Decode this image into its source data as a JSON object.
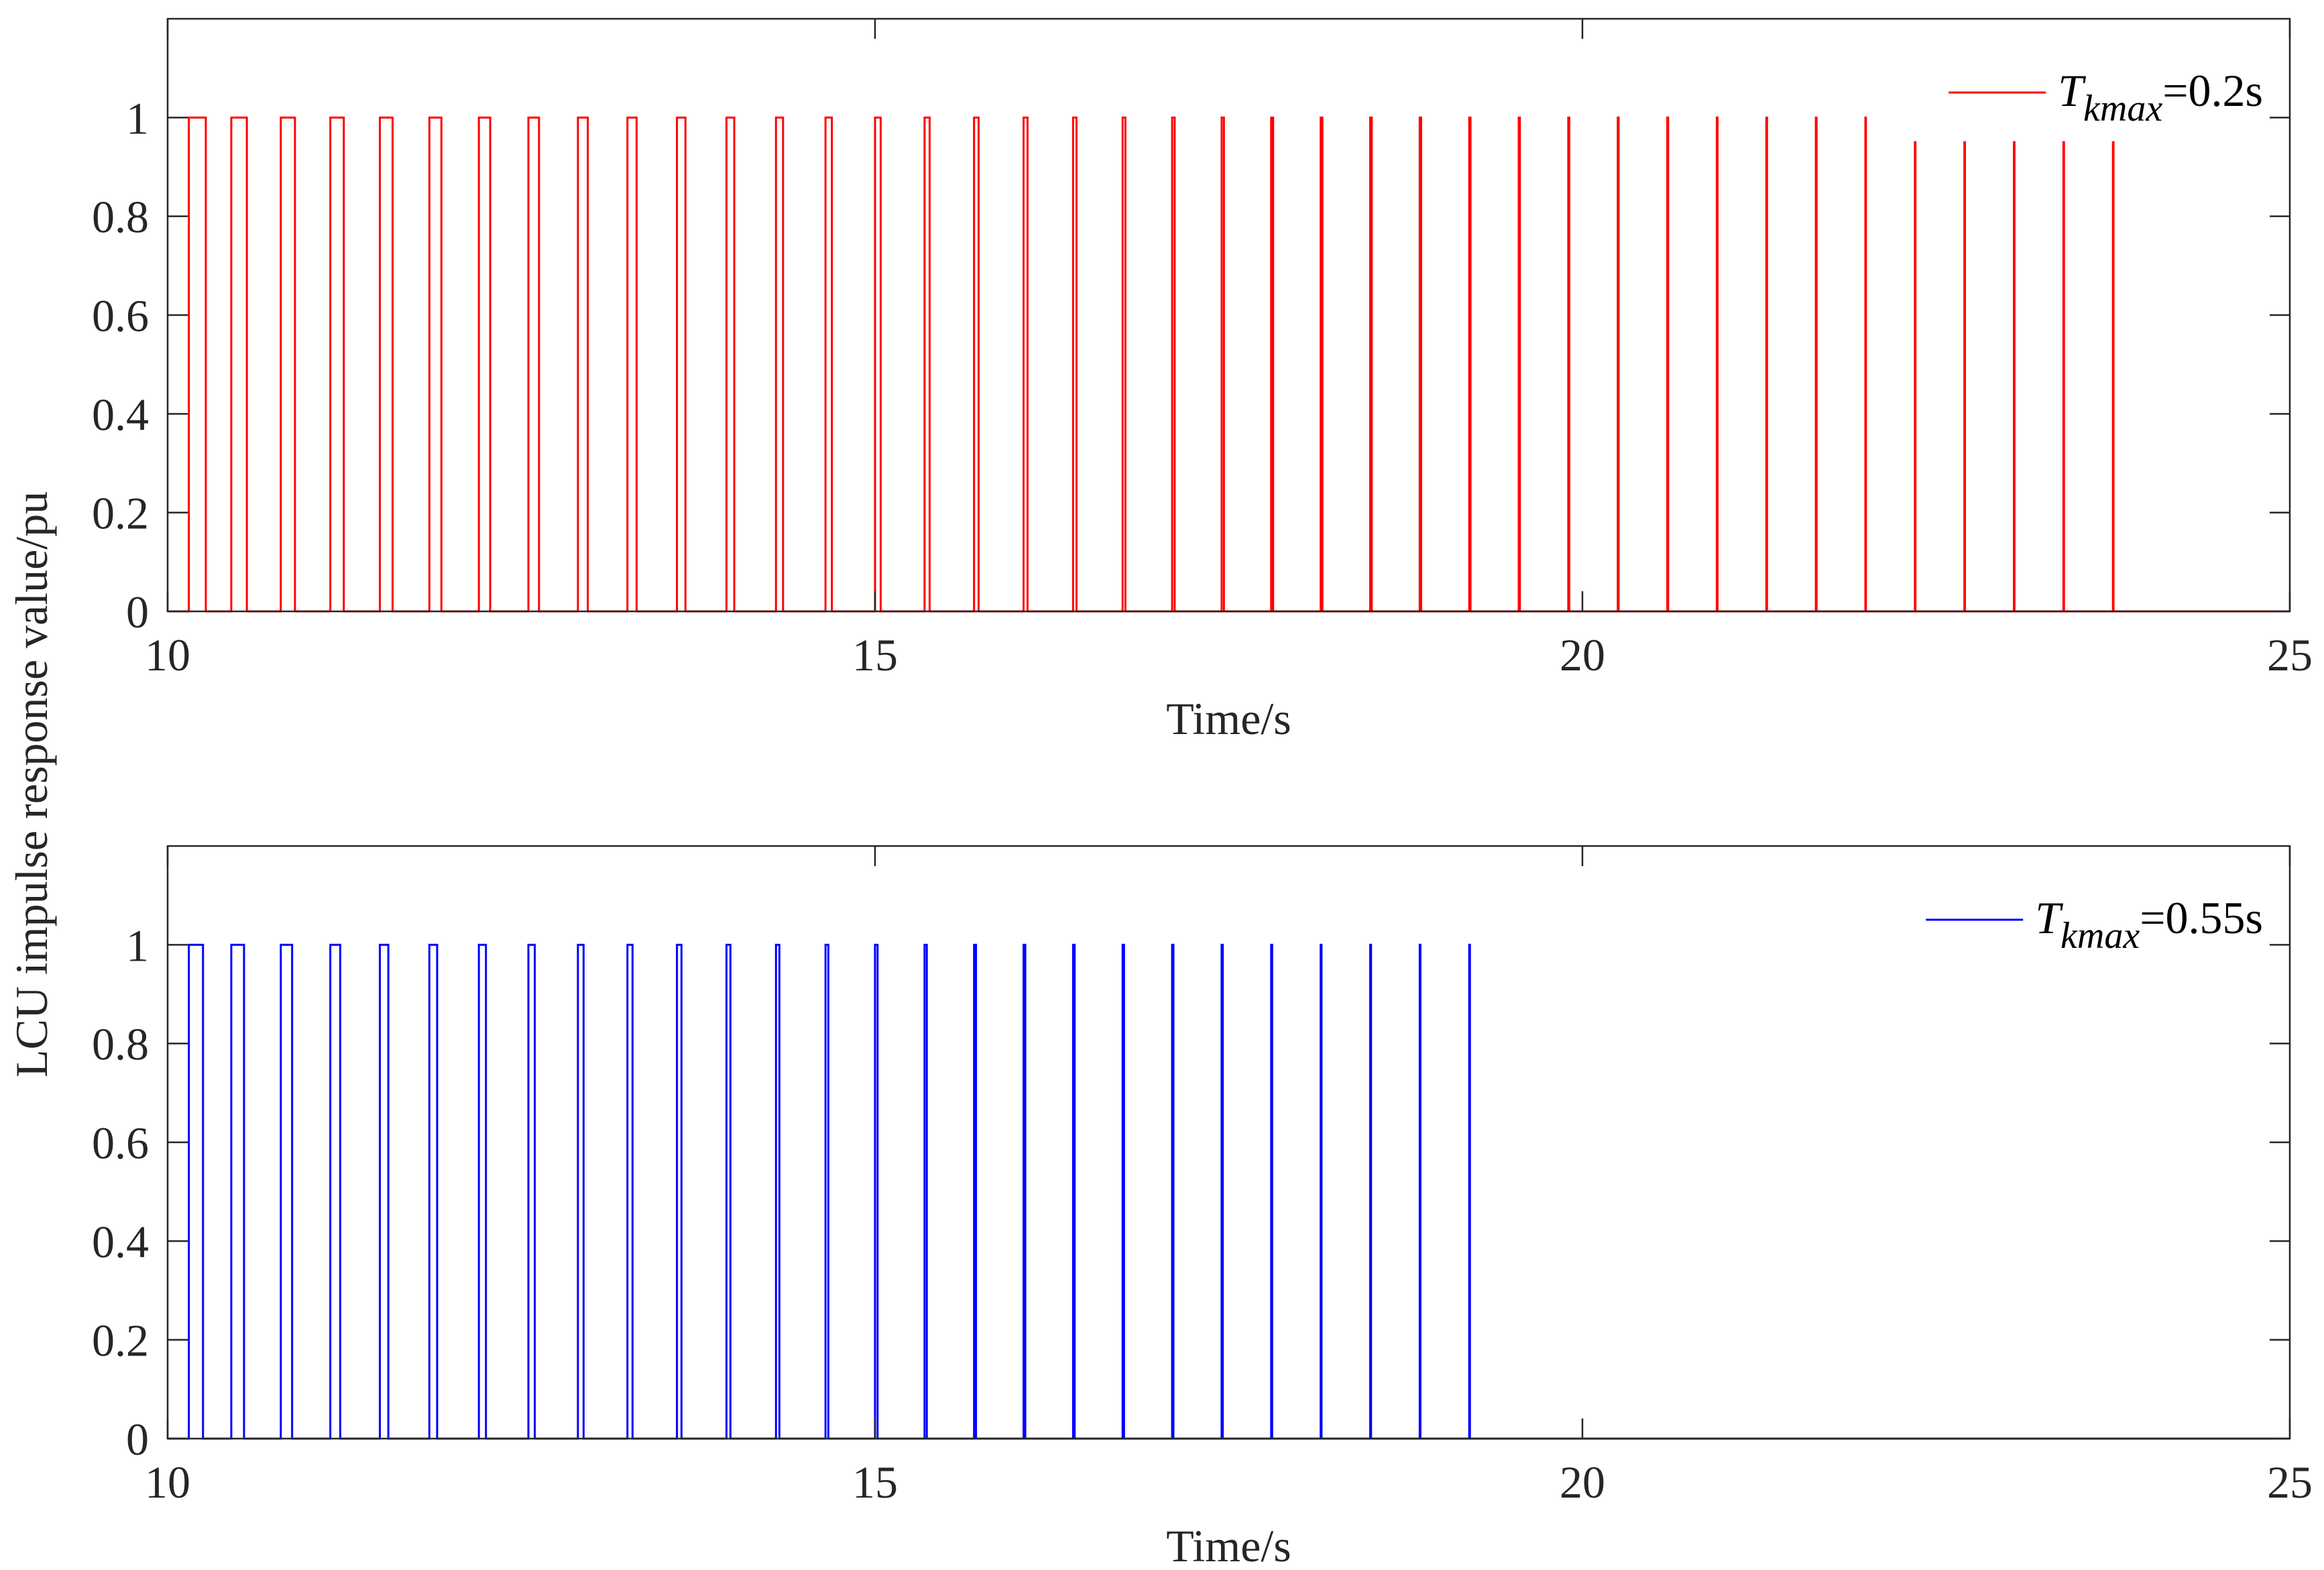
{
  "figure": {
    "shared_ylabel": "LCU impulse response value/pu"
  },
  "chart_data": [
    {
      "type": "line",
      "xlabel": "Time/s",
      "xlim": [
        10,
        25
      ],
      "ylim": [
        0,
        1.2
      ],
      "xticks": [
        10,
        15,
        20,
        25
      ],
      "yticks": [
        0,
        0.2,
        0.4,
        0.6,
        0.8,
        1
      ],
      "ytick_labels": [
        "0",
        "0.2",
        "0.4",
        "0.6",
        "0.8",
        "1"
      ],
      "legend_position": "top-right",
      "grid": false,
      "series": [
        {
          "name": "T_kmax=0.2s",
          "legend": {
            "main": "T",
            "sub": "kmax",
            "rest": "=0.2s"
          },
          "color": "#ff0000",
          "pulses": {
            "starts": [
              10.15,
              10.45,
              10.8,
              11.15,
              11.5,
              11.85,
              12.2,
              12.55,
              12.9,
              13.25,
              13.6,
              13.95,
              14.3,
              14.65,
              15.0,
              15.35,
              15.7,
              16.05,
              16.4,
              16.75,
              17.1,
              17.45,
              17.8,
              18.15,
              18.5,
              18.85,
              19.2,
              19.55,
              19.9,
              20.25,
              20.6,
              20.95,
              21.3,
              21.65,
              22.0,
              22.35,
              22.7,
              23.05,
              23.4,
              23.75
            ],
            "widths": [
              0.12,
              0.11,
              0.1,
              0.095,
              0.09,
              0.085,
              0.08,
              0.075,
              0.07,
              0.065,
              0.06,
              0.055,
              0.05,
              0.045,
              0.04,
              0.036,
              0.032,
              0.028,
              0.024,
              0.02,
              0.018,
              0.016,
              0.014,
              0.012,
              0.011,
              0.01,
              0.009,
              0.008,
              0.007,
              0.006,
              0.006,
              0.005,
              0.005,
              0.005,
              0.004,
              0.004,
              0.004,
              0.004,
              0.004,
              0.004
            ],
            "heights": [
              1,
              1,
              1,
              1,
              1,
              1,
              1,
              1,
              1,
              1,
              1,
              1,
              1,
              1,
              1,
              1,
              1,
              1,
              1,
              1,
              1,
              1,
              1,
              1,
              1,
              1,
              1,
              1,
              1,
              1,
              1,
              1,
              1,
              1,
              1,
              0.95,
              0.95,
              0.95,
              0.95,
              0.95
            ]
          }
        }
      ]
    },
    {
      "type": "line",
      "xlabel": "Time/s",
      "xlim": [
        10,
        25
      ],
      "ylim": [
        0,
        1.2
      ],
      "xticks": [
        10,
        15,
        20,
        25
      ],
      "yticks": [
        0,
        0.2,
        0.4,
        0.6,
        0.8,
        1
      ],
      "ytick_labels": [
        "0",
        "0.2",
        "0.4",
        "0.6",
        "0.8",
        "1"
      ],
      "legend_position": "top-right",
      "grid": false,
      "series": [
        {
          "name": "T_kmax=0.55s",
          "legend": {
            "main": "T",
            "sub": "kmax",
            "rest": "=0.55s"
          },
          "color": "#0000ff",
          "pulses": {
            "starts": [
              10.15,
              10.45,
              10.8,
              11.15,
              11.5,
              11.85,
              12.2,
              12.55,
              12.9,
              13.25,
              13.6,
              13.95,
              14.3,
              14.65,
              15.0,
              15.35,
              15.7,
              16.05,
              16.4,
              16.75,
              17.1,
              17.45,
              17.8,
              18.15,
              18.5,
              18.85,
              19.2
            ],
            "widths": [
              0.1,
              0.09,
              0.08,
              0.07,
              0.06,
              0.055,
              0.05,
              0.045,
              0.04,
              0.036,
              0.032,
              0.028,
              0.024,
              0.02,
              0.018,
              0.016,
              0.014,
              0.012,
              0.011,
              0.01,
              0.009,
              0.008,
              0.007,
              0.006,
              0.006,
              0.005,
              0.005
            ],
            "heights": [
              1,
              1,
              1,
              1,
              1,
              1,
              1,
              1,
              1,
              1,
              1,
              1,
              1,
              1,
              1,
              1,
              1,
              1,
              1,
              1,
              1,
              1,
              1,
              1,
              1,
              1,
              1
            ]
          }
        }
      ]
    }
  ]
}
